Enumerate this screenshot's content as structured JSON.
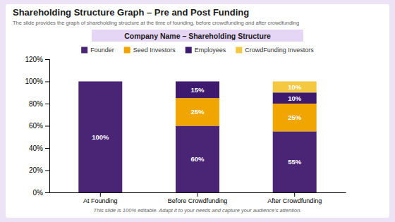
{
  "chart_data": {
    "type": "bar",
    "stacked": true,
    "title": "Shareholding Structure Graph – Pre and Post Funding",
    "subtitle": "The slide provides the graph of shareholding structure at the time of founding, before crowdfunding and after crowdfunding",
    "annotations": [
      "Company Name – Shareholding Structure",
      "This slide is 100% editable. Adapt it to your needs and capture your audience’s attention."
    ],
    "categories": [
      "At Founding",
      "Before Crowdfunding",
      "After Crowdfunding"
    ],
    "series": [
      {
        "name": "Founder",
        "color": "#4a2475",
        "values": [
          100,
          60,
          55
        ],
        "value_labels": [
          "100%",
          "60%",
          "55%"
        ]
      },
      {
        "name": "Seed Investors",
        "color": "#f0a500",
        "values": [
          0,
          25,
          25
        ],
        "value_labels": [
          null,
          "25%",
          "25%"
        ]
      },
      {
        "name": "Employees",
        "color": "#3d1a6e",
        "values": [
          0,
          15,
          10
        ],
        "value_labels": [
          null,
          "15%",
          "10%"
        ]
      },
      {
        "name": "CrowdFunding Investors",
        "color": "#f5c842",
        "values": [
          0,
          0,
          10
        ],
        "value_labels": [
          null,
          null,
          "10%"
        ]
      }
    ],
    "data_labels": true,
    "legend": "top",
    "grid": false,
    "ylim": [
      0,
      120
    ],
    "yticks": [
      {
        "value": 0,
        "label": "0%"
      },
      {
        "value": 20,
        "label": "20%"
      },
      {
        "value": 40,
        "label": "40%"
      },
      {
        "value": 60,
        "label": "60%"
      },
      {
        "value": 80,
        "label": "80%"
      },
      {
        "value": 100,
        "label": "100%"
      },
      {
        "value": 120,
        "label": "120%"
      }
    ]
  }
}
